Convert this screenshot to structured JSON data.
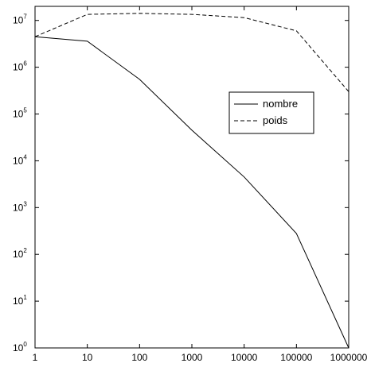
{
  "chart_data": {
    "type": "line",
    "x_scale": "log",
    "y_scale": "log",
    "x": [
      1,
      10,
      100,
      1000,
      10000,
      100000,
      1000000
    ],
    "xticks": [
      "1",
      "10",
      "100",
      "1000",
      "10000",
      "100000",
      "1000000"
    ],
    "yticks": [
      {
        "base": "10",
        "exp": "0"
      },
      {
        "base": "10",
        "exp": "1"
      },
      {
        "base": "10",
        "exp": "2"
      },
      {
        "base": "10",
        "exp": "3"
      },
      {
        "base": "10",
        "exp": "4"
      },
      {
        "base": "10",
        "exp": "5"
      },
      {
        "base": "10",
        "exp": "6"
      },
      {
        "base": "10",
        "exp": "7"
      }
    ],
    "xlim": [
      1,
      1000000
    ],
    "ylim": [
      1,
      20000000
    ],
    "grid": false,
    "legend_position": "center-right",
    "series": [
      {
        "name": "nombre",
        "style": "solid",
        "color": "#000000",
        "values": [
          4500000,
          3600000,
          550000,
          45000,
          4500,
          280,
          1
        ]
      },
      {
        "name": "poids",
        "style": "dashed",
        "color": "#000000",
        "values": [
          4500000,
          13500000,
          14200000,
          13500000,
          11500000,
          6000000,
          300000
        ]
      }
    ]
  }
}
